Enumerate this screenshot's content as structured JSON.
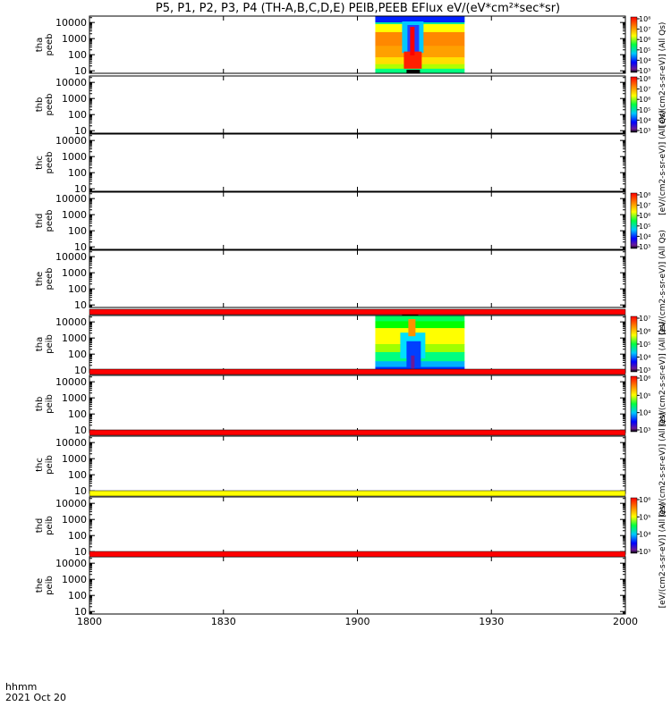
{
  "chart_data": {
    "type": "heatmap",
    "title": "P5, P1, P2, P3, P4 (TH-A,B,C,D,E) PEIB,PEEB EFlux eV/(eV*cm²*sec*sr)",
    "x_axis": {
      "label_line1": "hhmm",
      "label_line2": "2021 Oct 20",
      "range_minutes": [
        1080,
        1200
      ],
      "ticks": [
        {
          "label": "1800",
          "minutes": 1080
        },
        {
          "label": "1830",
          "minutes": 1110
        },
        {
          "label": "1900",
          "minutes": 1140
        },
        {
          "label": "1930",
          "minutes": 1170
        },
        {
          "label": "2000",
          "minutes": 1200
        }
      ]
    },
    "y_axis": {
      "scale": "log",
      "range": [
        7,
        25000
      ],
      "tick_labels": [
        "10",
        "100",
        "1000",
        "10000"
      ],
      "tick_values": [
        10,
        100,
        1000,
        10000
      ]
    },
    "panels": [
      {
        "probe": "tha",
        "product": "peeb",
        "data_minutes": [
          1144,
          1164
        ],
        "pattern": "electron"
      },
      {
        "probe": "thb",
        "product": "peeb"
      },
      {
        "probe": "thc",
        "product": "peeb"
      },
      {
        "probe": "thd",
        "product": "peeb"
      },
      {
        "probe": "the",
        "product": "peeb"
      },
      {
        "probe": "tha",
        "product": "peib",
        "data_minutes": [
          1144,
          1164
        ],
        "pattern": "ion"
      },
      {
        "probe": "thb",
        "product": "peib"
      },
      {
        "probe": "thc",
        "product": "peib"
      },
      {
        "probe": "thd",
        "product": "peib"
      },
      {
        "probe": "the",
        "product": "peib"
      }
    ],
    "separator_bars": [
      {
        "after_panel": 4,
        "color": "#ff0000"
      },
      {
        "after_panel": 5,
        "color": "#ff0000"
      },
      {
        "after_panel": 6,
        "color": "#ff0000"
      },
      {
        "after_panel": 7,
        "color": "#ffff00"
      },
      {
        "after_panel": 8,
        "color": "#ff0000"
      }
    ],
    "colorbars": [
      {
        "panel": 0,
        "labels": [
          "10³",
          "10⁴",
          "10⁵",
          "10⁶",
          "10⁷",
          "10⁸"
        ],
        "exp_min": 3,
        "exp_max": 8
      },
      {
        "panel": 1,
        "labels": [
          "10³",
          "10⁴",
          "10⁵",
          "10⁶",
          "10⁷",
          "10⁸"
        ],
        "exp_min": 3,
        "exp_max": 8
      },
      {
        "panel": 3,
        "labels": [
          "10³",
          "10⁴",
          "10⁵",
          "10⁶",
          "10⁷",
          "10⁸"
        ],
        "exp_min": 3,
        "exp_max": 8
      },
      {
        "panel": 5,
        "labels": [
          "10³",
          "10⁴",
          "10⁵",
          "10⁶",
          "10⁷"
        ],
        "exp_min": 3,
        "exp_max": 7
      },
      {
        "panel": 6,
        "labels": [
          "10³",
          "10⁴",
          "10⁵",
          "10⁶"
        ],
        "exp_min": 3,
        "exp_max": 6
      },
      {
        "panel": 8,
        "labels": [
          "10³",
          "10⁴",
          "10⁵",
          "10⁶"
        ],
        "exp_min": 3,
        "exp_max": 6
      }
    ],
    "colorbar_titles": [
      {
        "text": "[eV/(cm2-s-sr-eV)] (All Qs)",
        "from_panel": 0,
        "to_panel": 1
      },
      {
        "text": "[eV/(cm2-s-sr-eV)] (All Qs)",
        "from_panel": 1,
        "to_panel": 3
      },
      {
        "text": "[eV/(cm2-s-sr-eV)] (All Qs)",
        "from_panel": 3,
        "to_panel": 5
      },
      {
        "text": "[eV/(cm2-s-sr-eV)] (All Qs)",
        "from_panel": 5,
        "to_panel": 6
      },
      {
        "text": "[eV/(cm2-s-sr-eV)] (All Qs)",
        "from_panel": 6,
        "to_panel": 8
      },
      {
        "text": "[eV/(cm2-s-sr-eV)] (All Qs)",
        "from_panel": 8,
        "to_panel": 9
      }
    ]
  }
}
